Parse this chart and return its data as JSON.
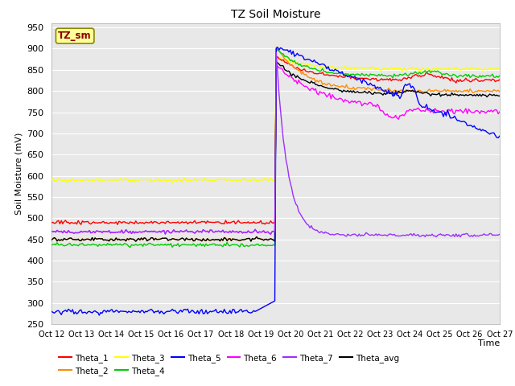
{
  "title": "TZ Soil Moisture",
  "xlabel": "Time",
  "ylabel": "Soil Moisture (mV)",
  "ylim": [
    250,
    960
  ],
  "yticks": [
    250,
    300,
    350,
    400,
    450,
    500,
    550,
    600,
    650,
    700,
    750,
    800,
    850,
    900,
    950
  ],
  "x_labels": [
    "Oct 12",
    "Oct 13",
    "Oct 14",
    "Oct 15",
    "Oct 16",
    "Oct 17",
    "Oct 18",
    "Oct 19",
    "Oct 20",
    "Oct 21",
    "Oct 22",
    "Oct 23",
    "Oct 24",
    "Oct 25",
    "Oct 26",
    "Oct 27"
  ],
  "num_points": 320,
  "event_idx": 160,
  "series": {
    "Theta_1": {
      "color": "#FF0000"
    },
    "Theta_2": {
      "color": "#FF8C00"
    },
    "Theta_3": {
      "color": "#FFFF00"
    },
    "Theta_4": {
      "color": "#00CC00"
    },
    "Theta_5": {
      "color": "#0000FF"
    },
    "Theta_6": {
      "color": "#FF00FF"
    },
    "Theta_7": {
      "color": "#9B30FF"
    },
    "Theta_avg": {
      "color": "#000000"
    }
  },
  "bg_color": "#E8E8E8",
  "grid_color": "#FFFFFF",
  "legend_box_color": "#FFFF99",
  "legend_box_text": "TZ_sm",
  "legend_box_edgecolor": "#888800"
}
